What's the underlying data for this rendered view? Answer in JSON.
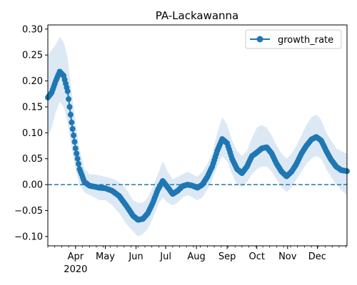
{
  "chart_data": {
    "type": "line",
    "title": "PA-Lackawanna",
    "xlabel": "",
    "ylabel": "",
    "x_axis": {
      "type": "date",
      "start": "2020-03-04",
      "end": "2020-12-31",
      "major_ticks": [
        {
          "date": "2020-04-01",
          "label": "Apr",
          "sublabel": "2020"
        },
        {
          "date": "2020-05-01",
          "label": "May"
        },
        {
          "date": "2020-06-01",
          "label": "Jun"
        },
        {
          "date": "2020-07-01",
          "label": "Jul"
        },
        {
          "date": "2020-08-01",
          "label": "Aug"
        },
        {
          "date": "2020-09-01",
          "label": "Sep"
        },
        {
          "date": "2020-10-01",
          "label": "Oct"
        },
        {
          "date": "2020-11-01",
          "label": "Nov"
        },
        {
          "date": "2020-12-01",
          "label": "Dec"
        }
      ]
    },
    "y_axis": {
      "range": [
        -0.118,
        0.308
      ],
      "ticks": [
        -0.1,
        -0.05,
        0.0,
        0.05,
        0.1,
        0.15,
        0.2,
        0.25,
        0.3
      ],
      "tick_labels": [
        "−0.10",
        "−0.05",
        "0.00",
        "0.05",
        "0.10",
        "0.15",
        "0.20",
        "0.25",
        "0.30"
      ]
    },
    "grid": false,
    "legend": {
      "placement": "top-right",
      "entries": [
        "growth_rate"
      ]
    },
    "reference_line": {
      "y": 0.0,
      "style": "dashed",
      "color": "#1f77b4"
    },
    "series": [
      {
        "name": "growth_rate",
        "color": "#1f77b4",
        "marker": "circle",
        "band_color": "#dce9f5",
        "x": [
          "2020-03-04",
          "2020-03-08",
          "2020-03-12",
          "2020-03-16",
          "2020-03-20",
          "2020-03-24",
          "2020-03-28",
          "2020-04-01",
          "2020-04-05",
          "2020-04-10",
          "2020-04-15",
          "2020-04-20",
          "2020-04-25",
          "2020-05-01",
          "2020-05-08",
          "2020-05-15",
          "2020-05-22",
          "2020-05-29",
          "2020-06-03",
          "2020-06-08",
          "2020-06-13",
          "2020-06-18",
          "2020-06-23",
          "2020-06-28",
          "2020-07-03",
          "2020-07-08",
          "2020-07-13",
          "2020-07-18",
          "2020-07-23",
          "2020-07-28",
          "2020-08-02",
          "2020-08-07",
          "2020-08-12",
          "2020-08-17",
          "2020-08-22",
          "2020-08-27",
          "2020-09-01",
          "2020-09-06",
          "2020-09-11",
          "2020-09-16",
          "2020-09-21",
          "2020-09-26",
          "2020-10-01",
          "2020-10-06",
          "2020-10-11",
          "2020-10-16",
          "2020-10-21",
          "2020-10-26",
          "2020-10-31",
          "2020-11-05",
          "2020-11-10",
          "2020-11-15",
          "2020-11-20",
          "2020-11-25",
          "2020-11-30",
          "2020-12-05",
          "2020-12-10",
          "2020-12-15",
          "2020-12-20",
          "2020-12-25",
          "2020-12-31"
        ],
        "values": [
          0.168,
          0.178,
          0.2,
          0.218,
          0.21,
          0.18,
          0.12,
          0.07,
          0.03,
          0.005,
          -0.002,
          -0.004,
          -0.006,
          -0.007,
          -0.012,
          -0.022,
          -0.04,
          -0.06,
          -0.068,
          -0.066,
          -0.055,
          -0.035,
          -0.01,
          0.007,
          -0.005,
          -0.018,
          -0.012,
          -0.003,
          0.0,
          -0.002,
          -0.006,
          0.0,
          0.015,
          0.035,
          0.065,
          0.088,
          0.08,
          0.05,
          0.03,
          0.022,
          0.035,
          0.055,
          0.062,
          0.07,
          0.072,
          0.06,
          0.04,
          0.025,
          0.016,
          0.025,
          0.04,
          0.06,
          0.075,
          0.087,
          0.092,
          0.085,
          0.065,
          0.048,
          0.035,
          0.028,
          0.026
        ],
        "lower": [
          0.09,
          0.11,
          0.14,
          0.16,
          0.15,
          0.12,
          0.07,
          0.03,
          0.0,
          -0.015,
          -0.02,
          -0.025,
          -0.03,
          -0.03,
          -0.04,
          -0.055,
          -0.075,
          -0.09,
          -0.1,
          -0.095,
          -0.085,
          -0.065,
          -0.04,
          -0.025,
          -0.035,
          -0.04,
          -0.035,
          -0.025,
          -0.02,
          -0.025,
          -0.03,
          -0.025,
          -0.01,
          0.01,
          0.035,
          0.055,
          0.045,
          0.02,
          0.0,
          -0.005,
          0.005,
          0.02,
          0.03,
          0.035,
          0.035,
          0.025,
          0.01,
          -0.005,
          -0.015,
          -0.005,
          0.01,
          0.025,
          0.04,
          0.05,
          0.055,
          0.05,
          0.03,
          0.015,
          0.0,
          -0.01,
          -0.02
        ],
        "upper": [
          0.25,
          0.26,
          0.27,
          0.285,
          0.275,
          0.245,
          0.18,
          0.12,
          0.07,
          0.03,
          0.02,
          0.02,
          0.018,
          0.015,
          0.012,
          0.005,
          -0.008,
          -0.03,
          -0.035,
          -0.035,
          -0.025,
          -0.005,
          0.02,
          0.045,
          0.025,
          0.01,
          0.015,
          0.02,
          0.025,
          0.02,
          0.015,
          0.025,
          0.04,
          0.06,
          0.1,
          0.13,
          0.115,
          0.085,
          0.065,
          0.055,
          0.065,
          0.09,
          0.11,
          0.115,
          0.11,
          0.095,
          0.075,
          0.06,
          0.05,
          0.06,
          0.075,
          0.095,
          0.115,
          0.13,
          0.135,
          0.125,
          0.1,
          0.085,
          0.07,
          0.065,
          0.06
        ]
      }
    ]
  }
}
